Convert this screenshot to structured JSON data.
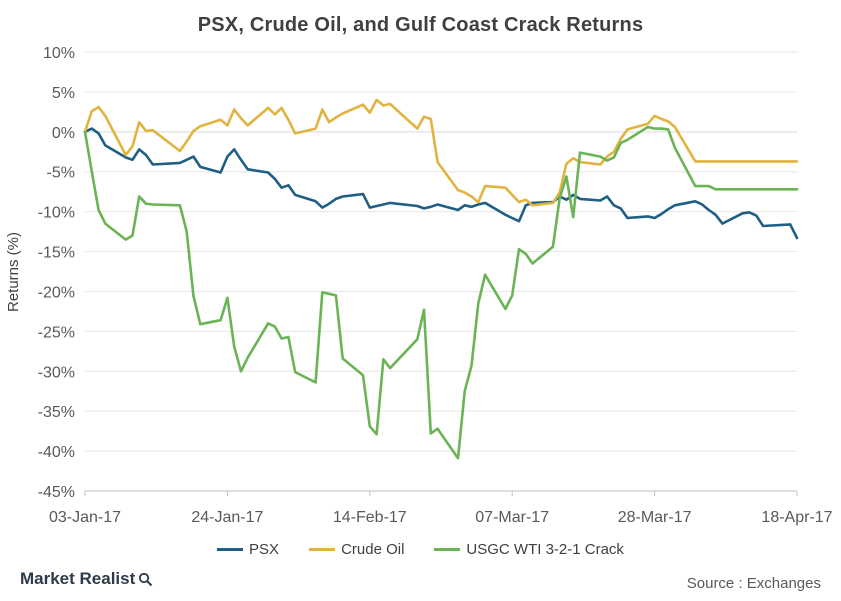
{
  "colors": {
    "psx": "#1f5f84",
    "crude": "#e0b43e",
    "crack": "#6bb455",
    "axis": "#bfbfbf"
  },
  "legend": {
    "psx": "PSX",
    "crude": "Crude Oil",
    "crack": "USGC WTI 3-2-1 Crack"
  },
  "footer": {
    "brand": "Market Realist",
    "brand_icon": "magnifier-icon",
    "source": "Source : Exchanges"
  },
  "chart_data": {
    "type": "line",
    "title": "PSX, Crude Oil, and Gulf Coast Crack Returns",
    "ylabel": "Returns (%)",
    "xlabel": "",
    "ylim": [
      -45,
      10
    ],
    "yticks": [
      10,
      5,
      0,
      -5,
      -10,
      -15,
      -20,
      -25,
      -30,
      -35,
      -40,
      -45
    ],
    "ytick_labels": [
      "10%",
      "5%",
      "0%",
      "-5%",
      "-10%",
      "-15%",
      "-20%",
      "-25%",
      "-30%",
      "-35%",
      "-40%",
      "-45%"
    ],
    "xlim": [
      "2017-01-03",
      "2017-04-18"
    ],
    "xticks": [
      "2017-01-03",
      "2017-01-24",
      "2017-02-14",
      "2017-03-07",
      "2017-03-28",
      "2017-04-18"
    ],
    "xtick_labels": [
      "03-Jan-17",
      "24-Jan-17",
      "14-Feb-17",
      "07-Mar-17",
      "28-Mar-17",
      "18-Apr-17"
    ],
    "grid": "horizontal",
    "legend_position": "bottom",
    "series": [
      {
        "name": "PSX",
        "color": "#1f5f84",
        "x": [
          "2017-01-03",
          "2017-01-04",
          "2017-01-05",
          "2017-01-06",
          "2017-01-09",
          "2017-01-10",
          "2017-01-11",
          "2017-01-12",
          "2017-01-13",
          "2017-01-17",
          "2017-01-18",
          "2017-01-19",
          "2017-01-20",
          "2017-01-23",
          "2017-01-24",
          "2017-01-25",
          "2017-01-26",
          "2017-01-27",
          "2017-01-30",
          "2017-01-31",
          "2017-02-01",
          "2017-02-02",
          "2017-02-03",
          "2017-02-06",
          "2017-02-07",
          "2017-02-08",
          "2017-02-09",
          "2017-02-10",
          "2017-02-13",
          "2017-02-14",
          "2017-02-15",
          "2017-02-16",
          "2017-02-17",
          "2017-02-21",
          "2017-02-22",
          "2017-02-23",
          "2017-02-24",
          "2017-02-27",
          "2017-02-28",
          "2017-03-01",
          "2017-03-02",
          "2017-03-03",
          "2017-03-06",
          "2017-03-07",
          "2017-03-08",
          "2017-03-09",
          "2017-03-10",
          "2017-03-13",
          "2017-03-14",
          "2017-03-15",
          "2017-03-16",
          "2017-03-17",
          "2017-03-20",
          "2017-03-21",
          "2017-03-22",
          "2017-03-23",
          "2017-03-24",
          "2017-03-27",
          "2017-03-28",
          "2017-03-29",
          "2017-03-30",
          "2017-03-31",
          "2017-04-03",
          "2017-04-04",
          "2017-04-05",
          "2017-04-06",
          "2017-04-07",
          "2017-04-10",
          "2017-04-11",
          "2017-04-12",
          "2017-04-13",
          "2017-04-17",
          "2017-04-18"
        ],
        "values": [
          0,
          0.4,
          -0.2,
          -1.7,
          -3.2,
          -3.5,
          -2.2,
          -2.9,
          -4.1,
          -3.9,
          -3.5,
          -3.1,
          -4.4,
          -5.1,
          -3.1,
          -2.2,
          -3.5,
          -4.7,
          -5.1,
          -5.9,
          -7.0,
          -6.7,
          -7.9,
          -8.7,
          -9.5,
          -9.0,
          -8.4,
          -8.1,
          -7.8,
          -9.5,
          -9.3,
          -9.1,
          -8.9,
          -9.3,
          -9.6,
          -9.4,
          -9.1,
          -9.8,
          -9.2,
          -9.4,
          -9.1,
          -8.9,
          -10.4,
          -10.8,
          -11.2,
          -9.2,
          -8.9,
          -8.8,
          -8.1,
          -8.5,
          -7.9,
          -8.4,
          -8.6,
          -8.1,
          -9.2,
          -9.6,
          -10.8,
          -10.6,
          -10.8,
          -10.3,
          -9.7,
          -9.2,
          -8.7,
          -9.1,
          -9.8,
          -10.4,
          -11.5,
          -10.2,
          -10.1,
          -10.5,
          -11.8,
          -11.6,
          -13.3
        ]
      },
      {
        "name": "Crude Oil",
        "color": "#e0b43e",
        "x": [
          "2017-01-03",
          "2017-01-04",
          "2017-01-05",
          "2017-01-06",
          "2017-01-09",
          "2017-01-10",
          "2017-01-11",
          "2017-01-12",
          "2017-01-13",
          "2017-01-17",
          "2017-01-18",
          "2017-01-19",
          "2017-01-20",
          "2017-01-23",
          "2017-01-24",
          "2017-01-25",
          "2017-01-26",
          "2017-01-27",
          "2017-01-30",
          "2017-01-31",
          "2017-02-01",
          "2017-02-02",
          "2017-02-03",
          "2017-02-06",
          "2017-02-07",
          "2017-02-08",
          "2017-02-09",
          "2017-02-10",
          "2017-02-13",
          "2017-02-14",
          "2017-02-15",
          "2017-02-16",
          "2017-02-17",
          "2017-02-21",
          "2017-02-22",
          "2017-02-23",
          "2017-02-24",
          "2017-02-27",
          "2017-02-28",
          "2017-03-01",
          "2017-03-02",
          "2017-03-03",
          "2017-03-06",
          "2017-03-07",
          "2017-03-08",
          "2017-03-09",
          "2017-03-10",
          "2017-03-13",
          "2017-03-14",
          "2017-03-15",
          "2017-03-16",
          "2017-03-17",
          "2017-03-20",
          "2017-03-21",
          "2017-03-22",
          "2017-03-23",
          "2017-03-24",
          "2017-03-27",
          "2017-03-28",
          "2017-03-29",
          "2017-03-30",
          "2017-03-31",
          "2017-04-03",
          "2017-04-04",
          "2017-04-05",
          "2017-04-06",
          "2017-04-07",
          "2017-04-10",
          "2017-04-11",
          "2017-04-12",
          "2017-04-13",
          "2017-04-17",
          "2017-04-18"
        ],
        "values": [
          0,
          2.6,
          3.1,
          2.0,
          -2.9,
          -1.8,
          1.2,
          0.1,
          0.2,
          -2.4,
          -1.2,
          0.1,
          0.7,
          1.5,
          0.8,
          2.8,
          1.7,
          0.8,
          3.0,
          2.2,
          3.0,
          1.5,
          -0.2,
          0.4,
          2.8,
          1.2,
          1.8,
          2.3,
          3.4,
          2.4,
          4.0,
          3.3,
          3.5,
          0.4,
          1.9,
          1.6,
          -3.8,
          -7.3,
          -7.6,
          -8.1,
          -8.8,
          -6.8,
          -7.0,
          -7.9,
          -8.8,
          -8.5,
          -9.2,
          -8.9,
          -7.6,
          -4.0,
          -3.3,
          -3.8,
          -4.1,
          -3.1,
          -2.5,
          -0.9,
          0.3,
          1.0,
          2.0,
          1.6,
          1.3,
          0.6,
          -3.7,
          -3.7,
          -3.7,
          -3.7,
          -3.7,
          -3.7,
          -3.7,
          -3.7,
          -3.7,
          -3.7,
          -3.7
        ]
      },
      {
        "name": "USGC WTI 3-2-1 Crack",
        "color": "#6bb455",
        "x": [
          "2017-01-03",
          "2017-01-04",
          "2017-01-05",
          "2017-01-06",
          "2017-01-09",
          "2017-01-10",
          "2017-01-11",
          "2017-01-12",
          "2017-01-13",
          "2017-01-17",
          "2017-01-18",
          "2017-01-19",
          "2017-01-20",
          "2017-01-23",
          "2017-01-24",
          "2017-01-25",
          "2017-01-26",
          "2017-01-27",
          "2017-01-30",
          "2017-01-31",
          "2017-02-01",
          "2017-02-02",
          "2017-02-03",
          "2017-02-06",
          "2017-02-07",
          "2017-02-08",
          "2017-02-09",
          "2017-02-10",
          "2017-02-13",
          "2017-02-14",
          "2017-02-15",
          "2017-02-16",
          "2017-02-17",
          "2017-02-21",
          "2017-02-22",
          "2017-02-23",
          "2017-02-24",
          "2017-02-27",
          "2017-02-28",
          "2017-03-01",
          "2017-03-02",
          "2017-03-03",
          "2017-03-06",
          "2017-03-07",
          "2017-03-08",
          "2017-03-09",
          "2017-03-10",
          "2017-03-13",
          "2017-03-14",
          "2017-03-15",
          "2017-03-16",
          "2017-03-17",
          "2017-03-20",
          "2017-03-21",
          "2017-03-22",
          "2017-03-23",
          "2017-03-24",
          "2017-03-27",
          "2017-03-28",
          "2017-03-29",
          "2017-03-30",
          "2017-03-31",
          "2017-04-03",
          "2017-04-04",
          "2017-04-05",
          "2017-04-06",
          "2017-04-07",
          "2017-04-10",
          "2017-04-11",
          "2017-04-12",
          "2017-04-13",
          "2017-04-17",
          "2017-04-18"
        ],
        "values": [
          0,
          -5.0,
          -9.8,
          -11.5,
          -13.5,
          -13.0,
          -8.1,
          -9.0,
          -9.1,
          -9.2,
          -12.5,
          -20.6,
          -24.1,
          -23.6,
          -20.8,
          -26.9,
          -30.0,
          -28.3,
          -24.0,
          -24.4,
          -25.9,
          -25.7,
          -30.1,
          -31.4,
          -20.1,
          -20.3,
          -20.5,
          -28.4,
          -30.5,
          -36.9,
          -37.9,
          -28.5,
          -29.6,
          -26.0,
          -22.3,
          -37.8,
          -37.2,
          -40.9,
          -32.5,
          -29.3,
          -21.5,
          -17.9,
          -22.2,
          -20.5,
          -14.7,
          -15.3,
          -16.5,
          -14.4,
          -8.3,
          -5.6,
          -10.7,
          -2.6,
          -3.1,
          -3.6,
          -3.2,
          -1.4,
          -1.0,
          0.6,
          0.4,
          0.4,
          0.3,
          -2.0,
          -6.8,
          -6.8,
          -6.8,
          -7.2,
          -7.2,
          -7.2,
          -7.2,
          -7.2,
          -7.2,
          -7.2,
          -7.2
        ]
      }
    ]
  }
}
